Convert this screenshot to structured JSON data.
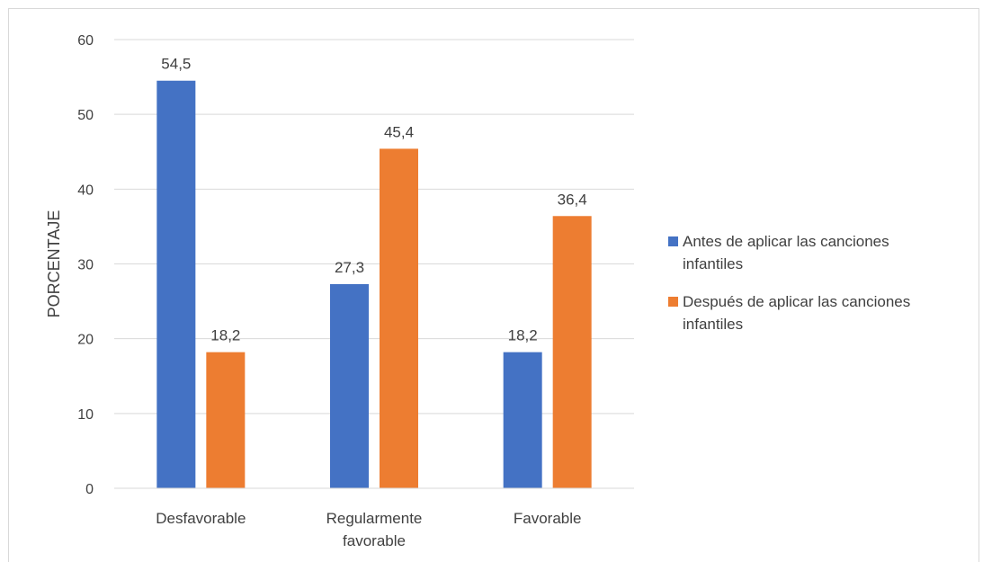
{
  "chart_data": {
    "type": "bar",
    "title": "",
    "ylabel": "PORCENTAJE",
    "xlabel": "",
    "ylim": [
      0,
      60
    ],
    "yticks": [
      0,
      10,
      20,
      30,
      40,
      50,
      60
    ],
    "grid": true,
    "legend_position": "right",
    "categories": [
      [
        "Desfavorable"
      ],
      [
        "Regularmente",
        "favorable"
      ],
      [
        "Favorable"
      ]
    ],
    "series": [
      {
        "name": [
          "Antes de aplicar las canciones",
          "infantiles"
        ],
        "color": "#4472C4",
        "values": [
          54.5,
          27.3,
          18.2
        ],
        "labels": [
          "54,5",
          "27,3",
          "18,2"
        ]
      },
      {
        "name": [
          "Después de aplicar las canciones",
          "infantiles"
        ],
        "color": "#ED7D31",
        "values": [
          18.2,
          45.4,
          36.4
        ],
        "labels": [
          "18,2",
          "45,4",
          "36,4"
        ]
      }
    ]
  }
}
